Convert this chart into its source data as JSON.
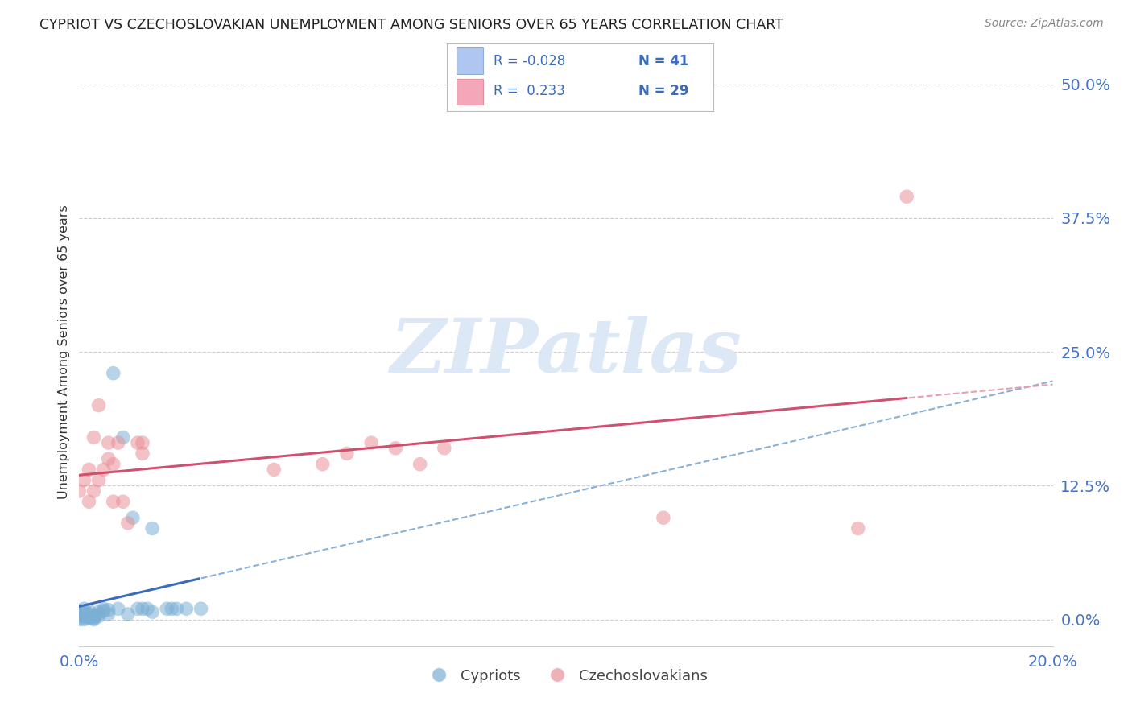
{
  "title": "CYPRIOT VS CZECHOSLOVAKIAN UNEMPLOYMENT AMONG SENIORS OVER 65 YEARS CORRELATION CHART",
  "source": "Source: ZipAtlas.com",
  "ylabel": "Unemployment Among Seniors over 65 years",
  "xlim": [
    0.0,
    0.2
  ],
  "ylim": [
    -0.025,
    0.525
  ],
  "ytick_vals": [
    0.0,
    0.125,
    0.25,
    0.375,
    0.5
  ],
  "ytick_labels": [
    "0.0%",
    "12.5%",
    "25.0%",
    "37.5%",
    "50.0%"
  ],
  "xtick_vals": [
    0.0,
    0.2
  ],
  "xtick_labels": [
    "0.0%",
    "20.0%"
  ],
  "cypriot_color": "#7bafd4",
  "czechoslovakian_color": "#e8909a",
  "cypriot_line_solid_color": "#3a6cba",
  "cypriot_line_dashed_color": "#88b0d8",
  "czechoslovakian_line_solid_color": "#d05070",
  "czechoslovakian_line_dashed_color": "#e8a0b0",
  "tick_color": "#4472c4",
  "grid_color": "#cccccc",
  "background_color": "#ffffff",
  "watermark_text": "ZIPatlas",
  "watermark_color": "#dce8f5",
  "legend_blue_color": "#aec6f0",
  "legend_pink_color": "#f4a7b9",
  "legend_text_color": "#3a6cba",
  "cypriot_x": [
    0.0,
    0.0,
    0.0,
    0.001,
    0.001,
    0.001,
    0.001,
    0.001,
    0.001,
    0.002,
    0.002,
    0.002,
    0.002,
    0.002,
    0.003,
    0.003,
    0.003,
    0.003,
    0.003,
    0.004,
    0.004,
    0.004,
    0.005,
    0.005,
    0.006,
    0.006,
    0.007,
    0.008,
    0.009,
    0.01,
    0.011,
    0.012,
    0.013,
    0.014,
    0.015,
    0.015,
    0.018,
    0.019,
    0.02,
    0.022,
    0.025
  ],
  "cypriot_y": [
    0.0,
    0.008,
    0.004,
    0.002,
    0.003,
    0.0,
    0.005,
    0.007,
    0.01,
    0.001,
    0.003,
    0.002,
    0.005,
    0.008,
    0.001,
    0.002,
    0.003,
    0.0,
    0.004,
    0.003,
    0.005,
    0.007,
    0.008,
    0.01,
    0.005,
    0.009,
    0.23,
    0.01,
    0.17,
    0.005,
    0.095,
    0.01,
    0.01,
    0.01,
    0.007,
    0.085,
    0.01,
    0.01,
    0.01,
    0.01,
    0.01
  ],
  "czechoslovakian_x": [
    0.0,
    0.001,
    0.002,
    0.002,
    0.003,
    0.003,
    0.004,
    0.004,
    0.005,
    0.006,
    0.006,
    0.007,
    0.007,
    0.008,
    0.009,
    0.01,
    0.012,
    0.013,
    0.013,
    0.04,
    0.05,
    0.055,
    0.06,
    0.065,
    0.07,
    0.075,
    0.12,
    0.16,
    0.17
  ],
  "czechoslovakian_y": [
    0.12,
    0.13,
    0.11,
    0.14,
    0.12,
    0.17,
    0.13,
    0.2,
    0.14,
    0.15,
    0.165,
    0.11,
    0.145,
    0.165,
    0.11,
    0.09,
    0.165,
    0.155,
    0.165,
    0.14,
    0.145,
    0.155,
    0.165,
    0.16,
    0.145,
    0.16,
    0.095,
    0.085,
    0.395
  ],
  "bottom_legend_labels": [
    "Cypriots",
    "Czechoslovakians"
  ]
}
